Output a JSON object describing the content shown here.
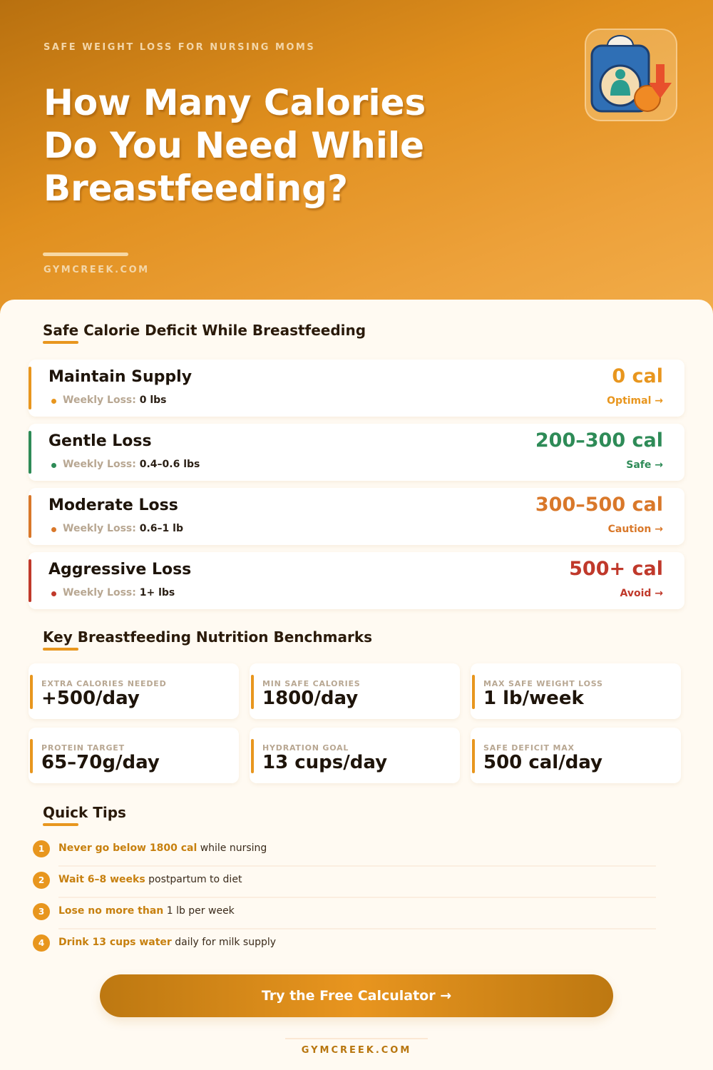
{
  "hero": {
    "eyebrow": "SAFE WEIGHT LOSS FOR NURSING MOMS",
    "title": "How Many Calories Do You Need While Breastfeeding?",
    "site": "GYMCREEK.COM",
    "logo_icon": "scale-breastfeeding-weight-down-icon"
  },
  "deficit": {
    "heading": "Safe Calorie Deficit While Breastfeeding",
    "weekly_label": "Weekly Loss:",
    "rows": [
      {
        "name": "Maintain Supply",
        "weekly": "0 lbs",
        "calories": "0 cal",
        "status": "Optimal →",
        "color": "#e8961e"
      },
      {
        "name": "Gentle Loss",
        "weekly": "0.4–0.6 lbs",
        "calories": "200–300 cal",
        "status": "Safe →",
        "color": "#2e8b57"
      },
      {
        "name": "Moderate Loss",
        "weekly": "0.6–1 lb",
        "calories": "300–500 cal",
        "status": "Caution →",
        "color": "#d9782a"
      },
      {
        "name": "Aggressive Loss",
        "weekly": "1+ lbs",
        "calories": "500+ cal",
        "status": "Avoid →",
        "color": "#c0392b"
      }
    ]
  },
  "benchmarks": {
    "heading": "Key Breastfeeding Nutrition Benchmarks",
    "items": [
      {
        "label": "EXTRA CALORIES NEEDED",
        "value": "+500/day"
      },
      {
        "label": "MIN SAFE CALORIES",
        "value": "1800/day"
      },
      {
        "label": "MAX SAFE WEIGHT LOSS",
        "value": "1 lb/week"
      },
      {
        "label": "PROTEIN TARGET",
        "value": "65–70g/day"
      },
      {
        "label": "HYDRATION GOAL",
        "value": "13 cups/day"
      },
      {
        "label": "SAFE DEFICIT MAX",
        "value": "500 cal/day"
      }
    ]
  },
  "tips": {
    "heading": "Quick Tips",
    "items": [
      {
        "num": "1",
        "bold": "Never go below 1800 cal",
        "rest": " while nursing"
      },
      {
        "num": "2",
        "bold": "Wait 6–8 weeks",
        "rest": " postpartum to diet"
      },
      {
        "num": "3",
        "bold": "Lose no more than",
        "rest": " 1 lb per week"
      },
      {
        "num": "4",
        "bold": "Drink 13 cups water",
        "rest": " daily for milk supply"
      }
    ]
  },
  "cta": {
    "label": "Try the Free Calculator →"
  },
  "footer": {
    "site": "GYMCREEK.COM"
  }
}
